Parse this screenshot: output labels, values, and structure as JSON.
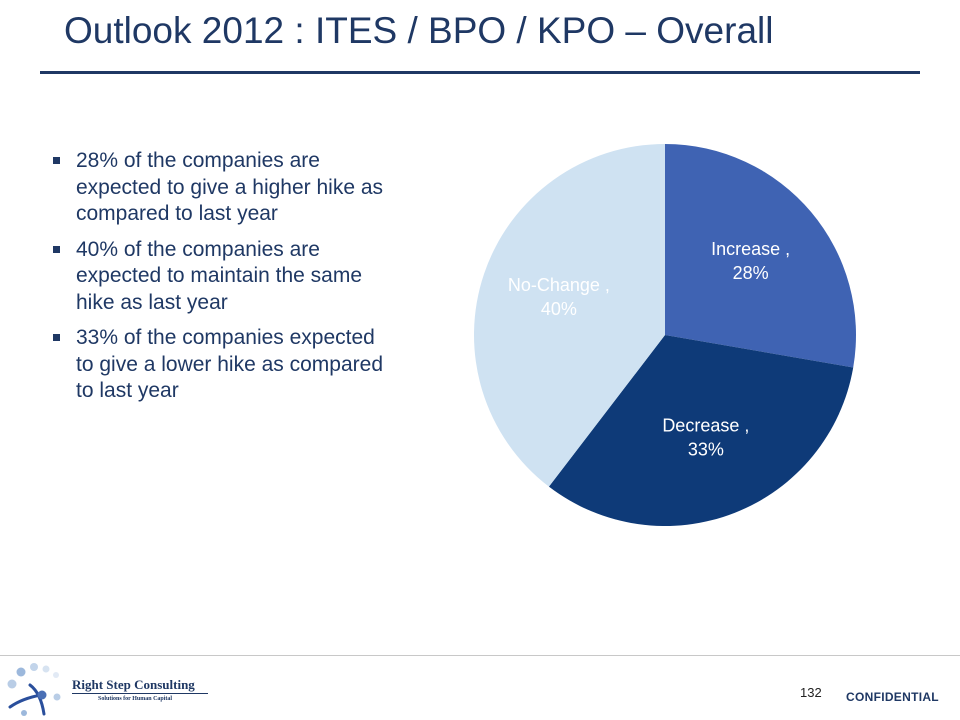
{
  "slide": {
    "title": "Outlook 2012 : ITES / BPO / KPO – Overall"
  },
  "bullets": [
    "28% of the companies are expected to give a higher hike as compared to last year",
    "40% of the companies are expected to maintain the same hike as last year",
    "33% of the companies expected to give a lower hike as compared to last year"
  ],
  "chart_data": {
    "type": "pie",
    "title": "",
    "slices": [
      {
        "label": "Increase",
        "value": 28,
        "value_label": "28%",
        "color": "#3f63b3",
        "text_color": "#ffffff"
      },
      {
        "label": "Decrease",
        "value": 33,
        "value_label": "33%",
        "color": "#0e3a78",
        "text_color": "#ffffff"
      },
      {
        "label": "No-Change",
        "value": 40,
        "value_label": "40%",
        "color": "#cfe2f2",
        "text_color": "#ffffff"
      }
    ],
    "start_angle": "12 o'clock",
    "direction": "clockwise",
    "legend": "none"
  },
  "footer": {
    "logo_name": "Right Step Consulting",
    "logo_tagline": "Solutions for Human Capital",
    "page_number": "132",
    "confidential": "CONFIDENTIAL"
  }
}
